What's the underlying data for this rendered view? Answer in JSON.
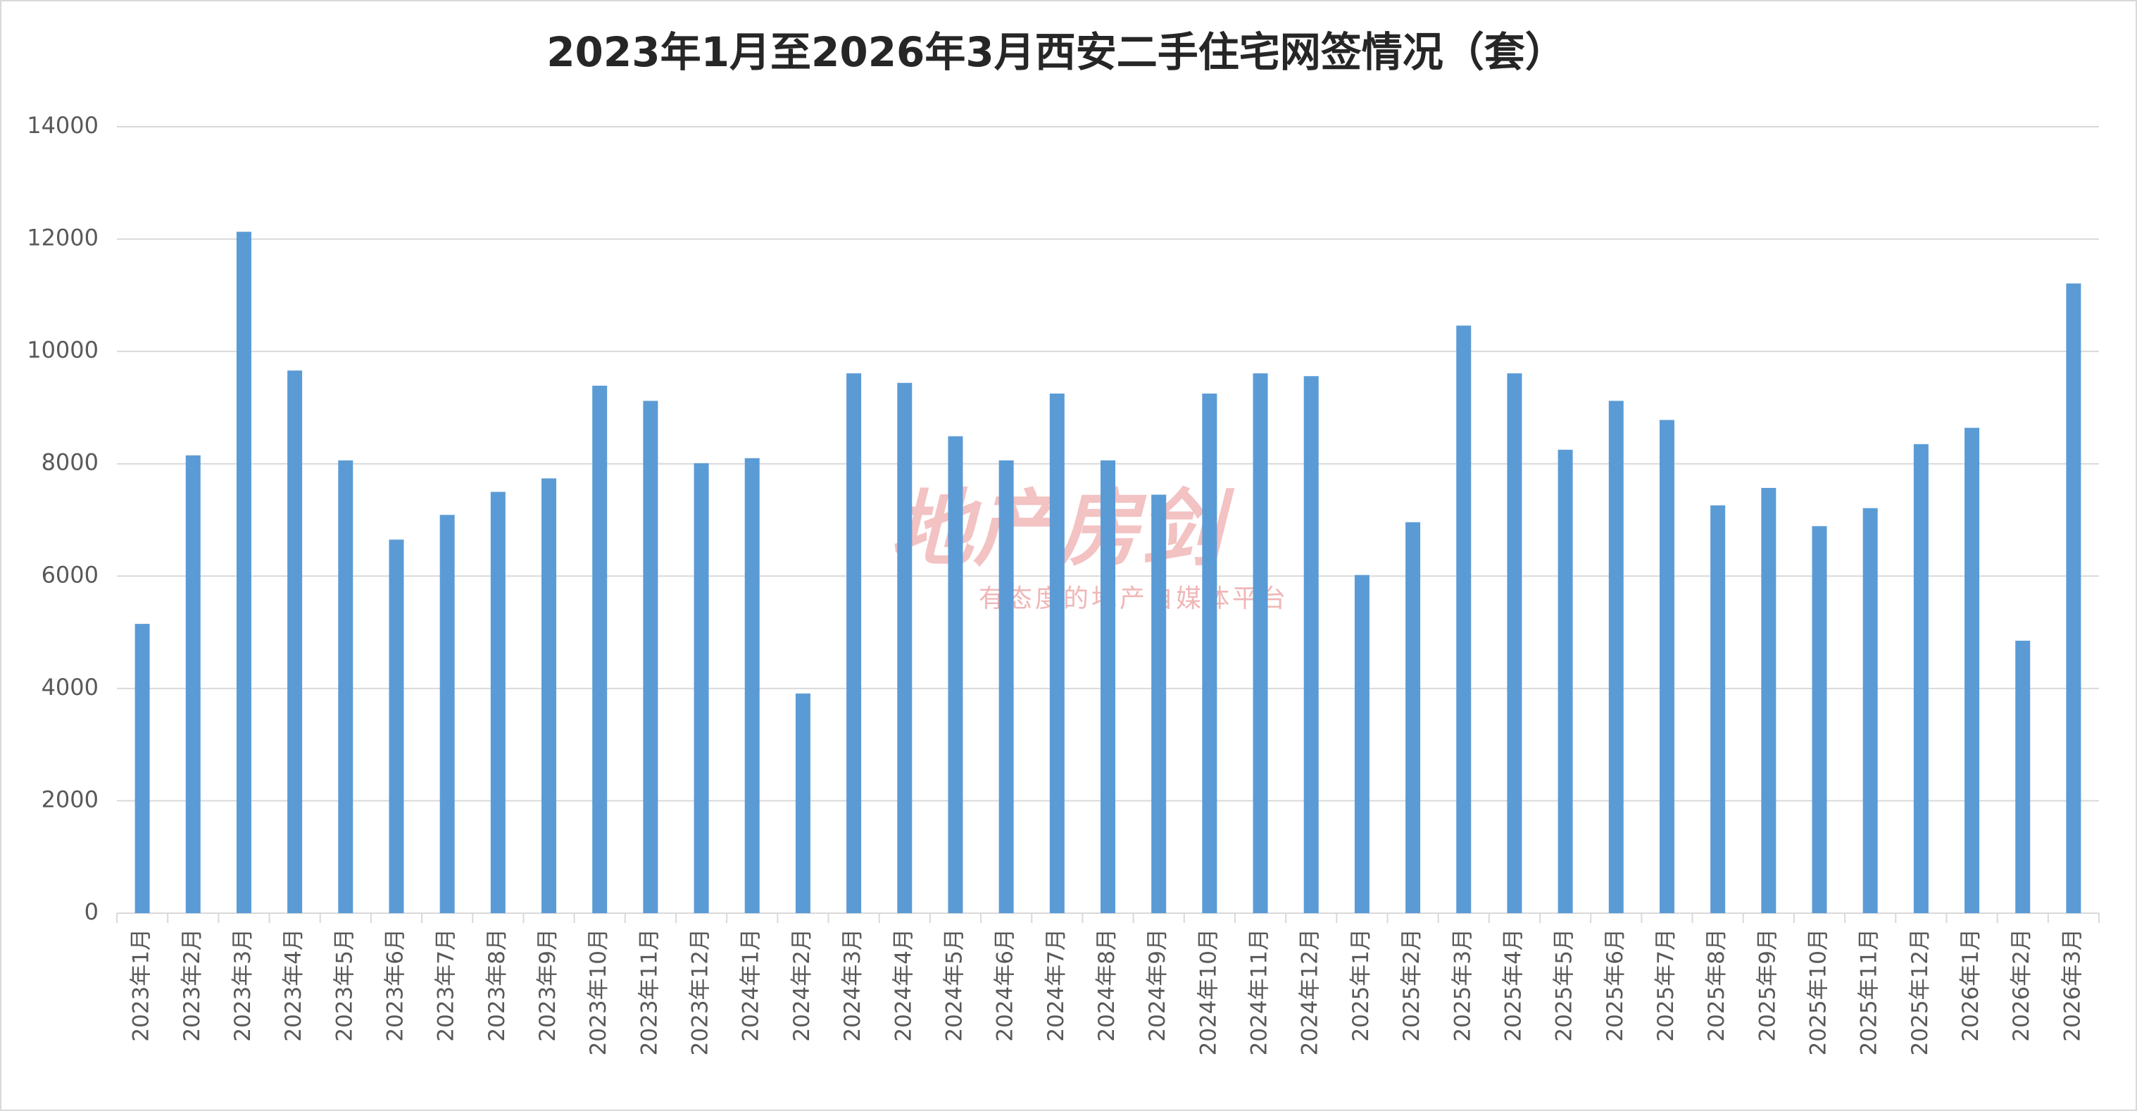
{
  "chart_data": {
    "type": "bar",
    "title": "2023年1月至2026年3月西安二手住宅网签情况（套）",
    "categories": [
      "2023年1月",
      "2023年2月",
      "2023年3月",
      "2023年4月",
      "2023年5月",
      "2023年6月",
      "2023年7月",
      "2023年8月",
      "2023年9月",
      "2023年10月",
      "2023年11月",
      "2023年12月",
      "2024年1月",
      "2024年2月",
      "2024年3月",
      "2024年4月",
      "2024年5月",
      "2024年6月",
      "2024年7月",
      "2024年8月",
      "2024年9月",
      "2024年10月",
      "2024年11月",
      "2024年12月",
      "2025年1月",
      "2025年2月",
      "2025年3月",
      "2025年4月",
      "2025年5月",
      "2025年6月",
      "2025年7月",
      "2025年8月",
      "2025年9月",
      "2025年10月",
      "2025年11月",
      "2025年12月",
      "2026年1月",
      "2026年2月",
      "2026年3月"
    ],
    "values": [
      5150,
      8150,
      12130,
      9660,
      8060,
      6650,
      7090,
      7500,
      7740,
      9390,
      9120,
      8010,
      8100,
      3910,
      9610,
      9440,
      8490,
      8060,
      9250,
      8060,
      7450,
      9250,
      9610,
      9560,
      6020,
      6960,
      10460,
      9610,
      8250,
      9120,
      8780,
      7260,
      7570,
      6890,
      7210,
      8350,
      8640,
      4850,
      11210
    ],
    "color": "#5b9bd5",
    "ylim": [
      0,
      14000
    ],
    "yticks": [
      0,
      2000,
      4000,
      6000,
      8000,
      10000,
      12000,
      14000
    ],
    "grid": true
  },
  "watermark": {
    "logo": "地产房剑",
    "slogan": "有态度的地产自媒体平台"
  }
}
